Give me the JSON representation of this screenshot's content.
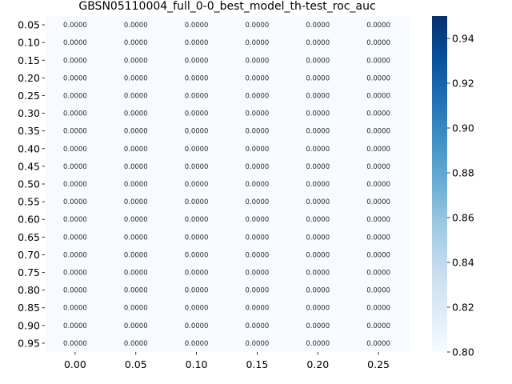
{
  "chart_data": {
    "type": "heatmap",
    "title": "GBSN05110004_full_0-0_best_model_th-test_roc_auc",
    "xlabel": "",
    "ylabel": "",
    "x": [
      "0.00",
      "0.05",
      "0.10",
      "0.15",
      "0.20",
      "0.25"
    ],
    "y": [
      "0.05",
      "0.10",
      "0.15",
      "0.20",
      "0.25",
      "0.30",
      "0.35",
      "0.40",
      "0.45",
      "0.50",
      "0.55",
      "0.60",
      "0.65",
      "0.70",
      "0.75",
      "0.80",
      "0.85",
      "0.90",
      "0.95"
    ],
    "values": [
      [
        0,
        0,
        0,
        0,
        0,
        0
      ],
      [
        0,
        0,
        0,
        0,
        0,
        0
      ],
      [
        0,
        0,
        0,
        0,
        0,
        0
      ],
      [
        0,
        0,
        0,
        0,
        0,
        0
      ],
      [
        0,
        0,
        0,
        0,
        0,
        0
      ],
      [
        0,
        0,
        0,
        0,
        0,
        0
      ],
      [
        0,
        0,
        0,
        0,
        0,
        0
      ],
      [
        0,
        0,
        0,
        0,
        0,
        0
      ],
      [
        0,
        0,
        0,
        0,
        0,
        0
      ],
      [
        0,
        0,
        0,
        0,
        0,
        0
      ],
      [
        0,
        0,
        0,
        0,
        0,
        0
      ],
      [
        0,
        0,
        0,
        0,
        0,
        0
      ],
      [
        0,
        0,
        0,
        0,
        0,
        0
      ],
      [
        0,
        0,
        0,
        0,
        0,
        0
      ],
      [
        0,
        0,
        0,
        0,
        0,
        0
      ],
      [
        0,
        0,
        0,
        0,
        0,
        0
      ],
      [
        0,
        0,
        0,
        0,
        0,
        0
      ],
      [
        0,
        0,
        0,
        0,
        0,
        0
      ],
      [
        0,
        0,
        0,
        0,
        0,
        0
      ]
    ],
    "value_format_decimals": 4,
    "colormap": "Blues",
    "color_range": [
      0.8,
      0.95
    ],
    "colorbar_ticks": [
      "0.80",
      "0.82",
      "0.84",
      "0.86",
      "0.88",
      "0.90",
      "0.92",
      "0.94"
    ],
    "cell_color": "#f7fbff",
    "colorbar_low_color": "#f7fbff",
    "colorbar_high_color": "#08306b",
    "legend": "colorbar-right",
    "grid": false
  }
}
